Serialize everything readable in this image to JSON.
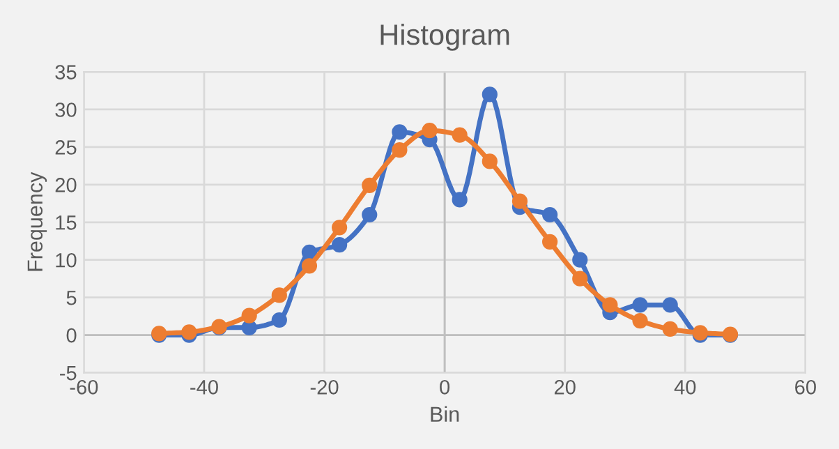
{
  "chart_data": {
    "type": "line",
    "title": "Histogram",
    "xlabel": "Bin",
    "ylabel": "Frequency",
    "x": [
      -47.5,
      -42.5,
      -37.5,
      -32.5,
      -27.5,
      -22.5,
      -17.5,
      -12.5,
      -7.5,
      -2.5,
      2.5,
      7.5,
      12.5,
      17.5,
      22.5,
      27.5,
      32.5,
      37.5,
      42.5,
      47.5
    ],
    "series": [
      {
        "color": "#4472c4",
        "values": [
          0,
          0,
          1,
          1,
          2,
          11,
          12,
          16,
          27,
          26,
          18,
          32,
          17,
          16,
          10,
          3,
          4,
          4,
          0,
          0
        ]
      },
      {
        "color": "#ed7d31",
        "values": [
          0.2,
          0.4,
          1.1,
          2.6,
          5.3,
          9.2,
          14.3,
          19.9,
          24.6,
          27.2,
          26.6,
          23.1,
          17.8,
          12.4,
          7.5,
          4,
          1.9,
          0.8,
          0.3,
          0.1
        ]
      }
    ],
    "xlim": [
      -60,
      60
    ],
    "xticks": [
      -60,
      -40,
      -20,
      0,
      20,
      40,
      60
    ],
    "ylim": [
      -5,
      35
    ],
    "yticks": [
      -5,
      0,
      5,
      10,
      15,
      20,
      25,
      30,
      35
    ],
    "grid": true,
    "marker": "circle",
    "line_style": "solid",
    "legend": false
  }
}
